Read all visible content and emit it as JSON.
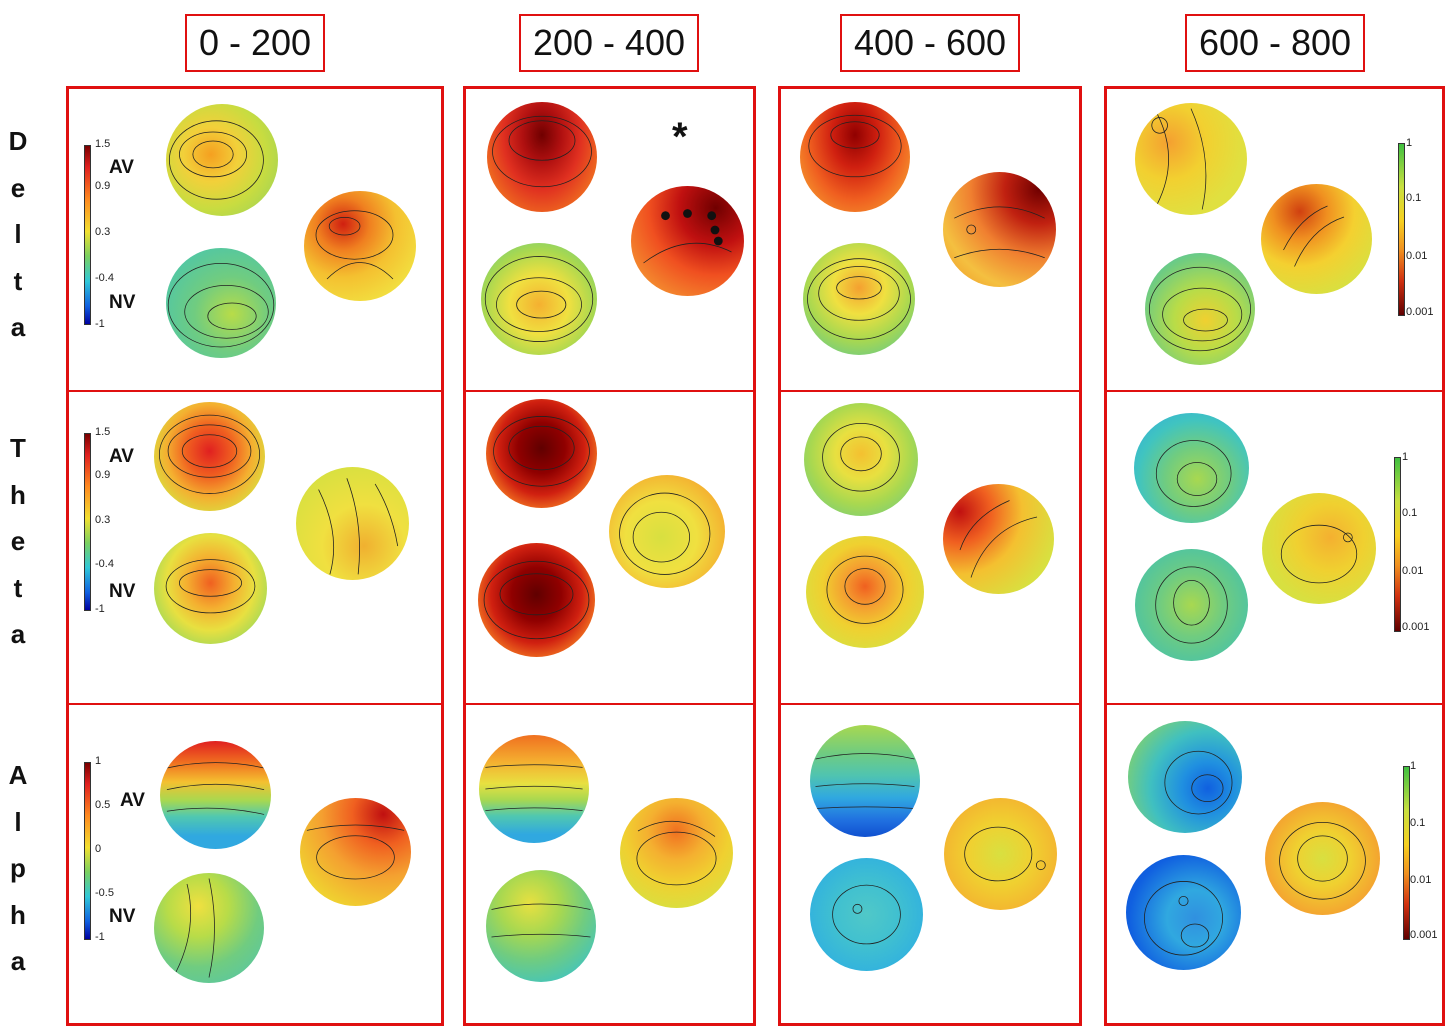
{
  "headers": [
    "0 - 200",
    "200 - 400",
    "400 - 600",
    "600 - 800"
  ],
  "rows": [
    {
      "letters": [
        "D",
        "e",
        "l",
        "t",
        "a"
      ]
    },
    {
      "letters": [
        "T",
        "h",
        "e",
        "t",
        "a"
      ]
    },
    {
      "letters": [
        "A",
        "l",
        "p",
        "h",
        "a"
      ]
    }
  ],
  "conditions": {
    "av": "AV",
    "nv": "NV"
  },
  "star": "*",
  "diff_colorbar": {
    "delta": [
      "1.5",
      "0.9",
      "0.3",
      "-0.4",
      "-1"
    ],
    "theta": [
      "1.5",
      "0.9",
      "0.3",
      "-0.4",
      "-1"
    ],
    "alpha": [
      "1",
      "0.5",
      "0",
      "-0.5",
      "-1"
    ]
  },
  "p_colorbar": [
    "1",
    "0.1",
    "0.01",
    "0.001"
  ],
  "colors": {
    "frame": "#e01010"
  }
}
